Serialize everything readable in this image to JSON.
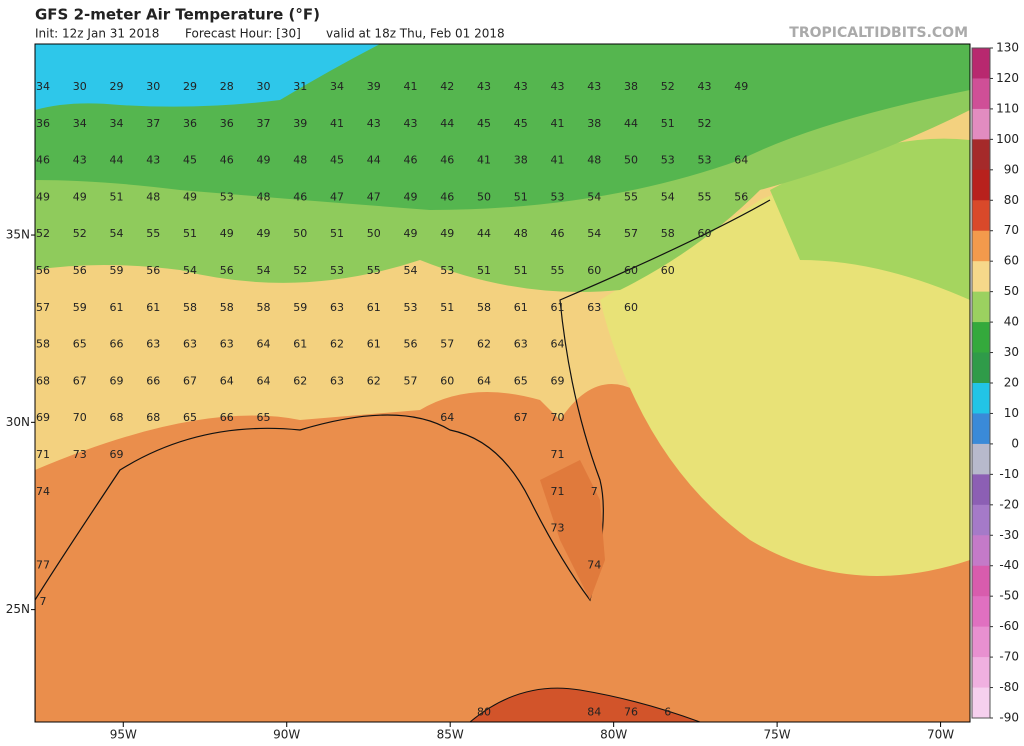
{
  "header": {
    "title": "GFS 2-meter Air Temperature (°F)",
    "init": "Init: 12z Jan 31 2018",
    "forecast_hour": "Forecast Hour: [30]",
    "valid": "valid at 18z Thu, Feb 01 2018",
    "brand": "TROPICALTIDBITS.COM"
  },
  "map": {
    "xlim": [
      -97.7,
      -69.1
    ],
    "ylim": [
      22.0,
      40.1
    ],
    "xticks": [
      {
        "value": -95,
        "label": "95W"
      },
      {
        "value": -90,
        "label": "90W"
      },
      {
        "value": -85,
        "label": "85W"
      },
      {
        "value": -80,
        "label": "80W"
      },
      {
        "value": -75,
        "label": "75W"
      },
      {
        "value": -70,
        "label": "70W"
      }
    ],
    "yticks": [
      {
        "value": 35,
        "label": "35N"
      },
      {
        "value": 30,
        "label": "30N"
      },
      {
        "value": 25,
        "label": "25N"
      }
    ],
    "station_grid": [
      [
        34,
        30,
        29,
        30,
        29,
        28,
        30,
        31,
        34,
        39,
        41,
        42,
        43,
        43,
        43,
        43,
        38,
        52,
        43,
        49
      ],
      [
        36,
        34,
        34,
        37,
        36,
        36,
        37,
        39,
        41,
        43,
        43,
        44,
        45,
        45,
        41,
        38,
        44,
        51,
        52,
        null
      ],
      [
        46,
        43,
        44,
        43,
        45,
        46,
        49,
        48,
        45,
        44,
        46,
        46,
        41,
        38,
        41,
        48,
        50,
        53,
        53,
        64
      ],
      [
        49,
        49,
        51,
        48,
        49,
        53,
        48,
        46,
        47,
        47,
        49,
        46,
        50,
        51,
        53,
        54,
        55,
        54,
        55,
        56
      ],
      [
        52,
        52,
        54,
        55,
        51,
        49,
        49,
        50,
        51,
        50,
        49,
        49,
        44,
        48,
        46,
        54,
        57,
        58,
        60,
        null
      ],
      [
        56,
        56,
        59,
        56,
        54,
        56,
        54,
        52,
        53,
        55,
        54,
        53,
        51,
        51,
        55,
        60,
        60,
        60,
        null,
        null
      ],
      [
        57,
        59,
        61,
        61,
        58,
        58,
        58,
        59,
        63,
        61,
        53,
        51,
        58,
        61,
        61,
        63,
        60,
        null,
        null,
        null
      ],
      [
        58,
        65,
        66,
        63,
        63,
        63,
        64,
        61,
        62,
        61,
        56,
        57,
        62,
        63,
        64,
        null,
        null,
        null,
        null,
        null
      ],
      [
        68,
        67,
        69,
        66,
        67,
        64,
        64,
        62,
        63,
        62,
        57,
        60,
        64,
        65,
        69,
        null,
        null,
        null,
        null,
        null
      ],
      [
        69,
        70,
        68,
        68,
        65,
        66,
        65,
        null,
        null,
        null,
        null,
        64,
        null,
        67,
        70,
        null,
        null,
        null,
        null,
        null
      ],
      [
        71,
        73,
        69,
        null,
        null,
        null,
        null,
        null,
        null,
        null,
        null,
        null,
        null,
        null,
        71,
        null,
        null,
        null,
        null,
        null
      ],
      [
        74,
        null,
        null,
        null,
        null,
        null,
        null,
        null,
        null,
        null,
        null,
        null,
        null,
        null,
        71,
        7,
        null,
        null,
        null,
        null
      ],
      [
        null,
        null,
        null,
        null,
        null,
        null,
        null,
        null,
        null,
        null,
        null,
        null,
        null,
        null,
        73,
        null,
        null,
        null,
        null,
        null
      ],
      [
        77,
        null,
        null,
        null,
        null,
        null,
        null,
        null,
        null,
        null,
        null,
        null,
        null,
        null,
        null,
        74,
        null,
        null,
        null,
        null
      ],
      [
        7,
        null,
        null,
        null,
        null,
        null,
        null,
        null,
        null,
        null,
        null,
        null,
        null,
        null,
        null,
        null,
        null,
        null,
        null,
        null
      ],
      [
        null,
        null,
        null,
        null,
        null,
        null,
        null,
        null,
        null,
        null,
        null,
        null,
        null,
        null,
        null,
        null,
        null,
        null,
        null,
        null
      ],
      [
        null,
        null,
        null,
        null,
        null,
        null,
        null,
        null,
        null,
        null,
        null,
        null,
        null,
        null,
        null,
        null,
        null,
        null,
        null,
        null
      ],
      [
        null,
        null,
        null,
        null,
        null,
        null,
        null,
        null,
        null,
        null,
        null,
        null,
        80,
        null,
        null,
        84,
        76,
        6,
        null,
        null
      ]
    ]
  },
  "colorbar": {
    "ticks": [
      130,
      120,
      110,
      100,
      90,
      80,
      70,
      60,
      50,
      40,
      30,
      20,
      10,
      0,
      -10,
      -20,
      -30,
      -40,
      -50,
      -60,
      -70,
      -80,
      -90
    ],
    "colors": [
      "#b8286f",
      "#cf4f97",
      "#e28cc0",
      "#a52a2a",
      "#b8211d",
      "#d9492a",
      "#f39a4c",
      "#f6d88a",
      "#9bd160",
      "#34a93c",
      "#2f9b49",
      "#22c4e6",
      "#3a8ad8",
      "#b7b9cc",
      "#8c5fb4",
      "#a57ac8",
      "#c47ac8",
      "#d85cad",
      "#e070c0",
      "#e890d0",
      "#f0b0e0",
      "#f6d0ee"
    ]
  }
}
